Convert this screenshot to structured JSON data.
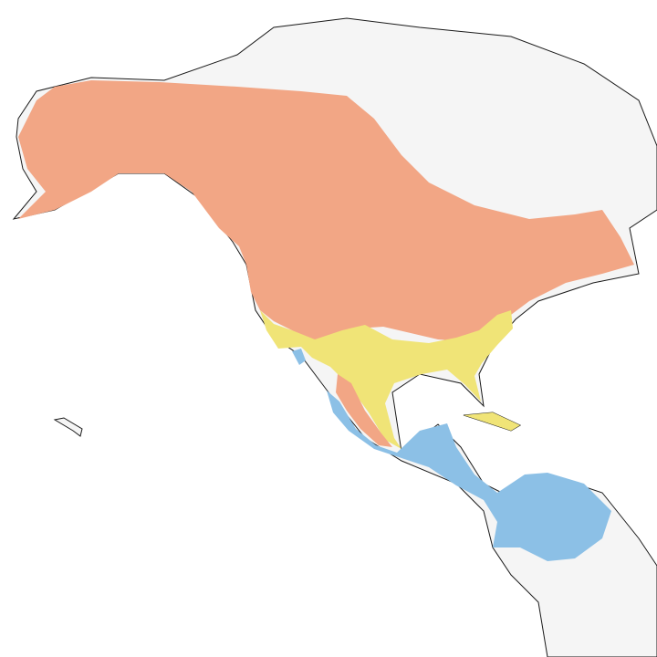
{
  "map": {
    "colors": {
      "ocean": "#ffffff",
      "land": "#f5f5f5",
      "outline": "#1a1a1a",
      "range_orange": "#f2a685",
      "range_yellow": "#f0e477",
      "range_blue": "#8cc0e6"
    }
  }
}
